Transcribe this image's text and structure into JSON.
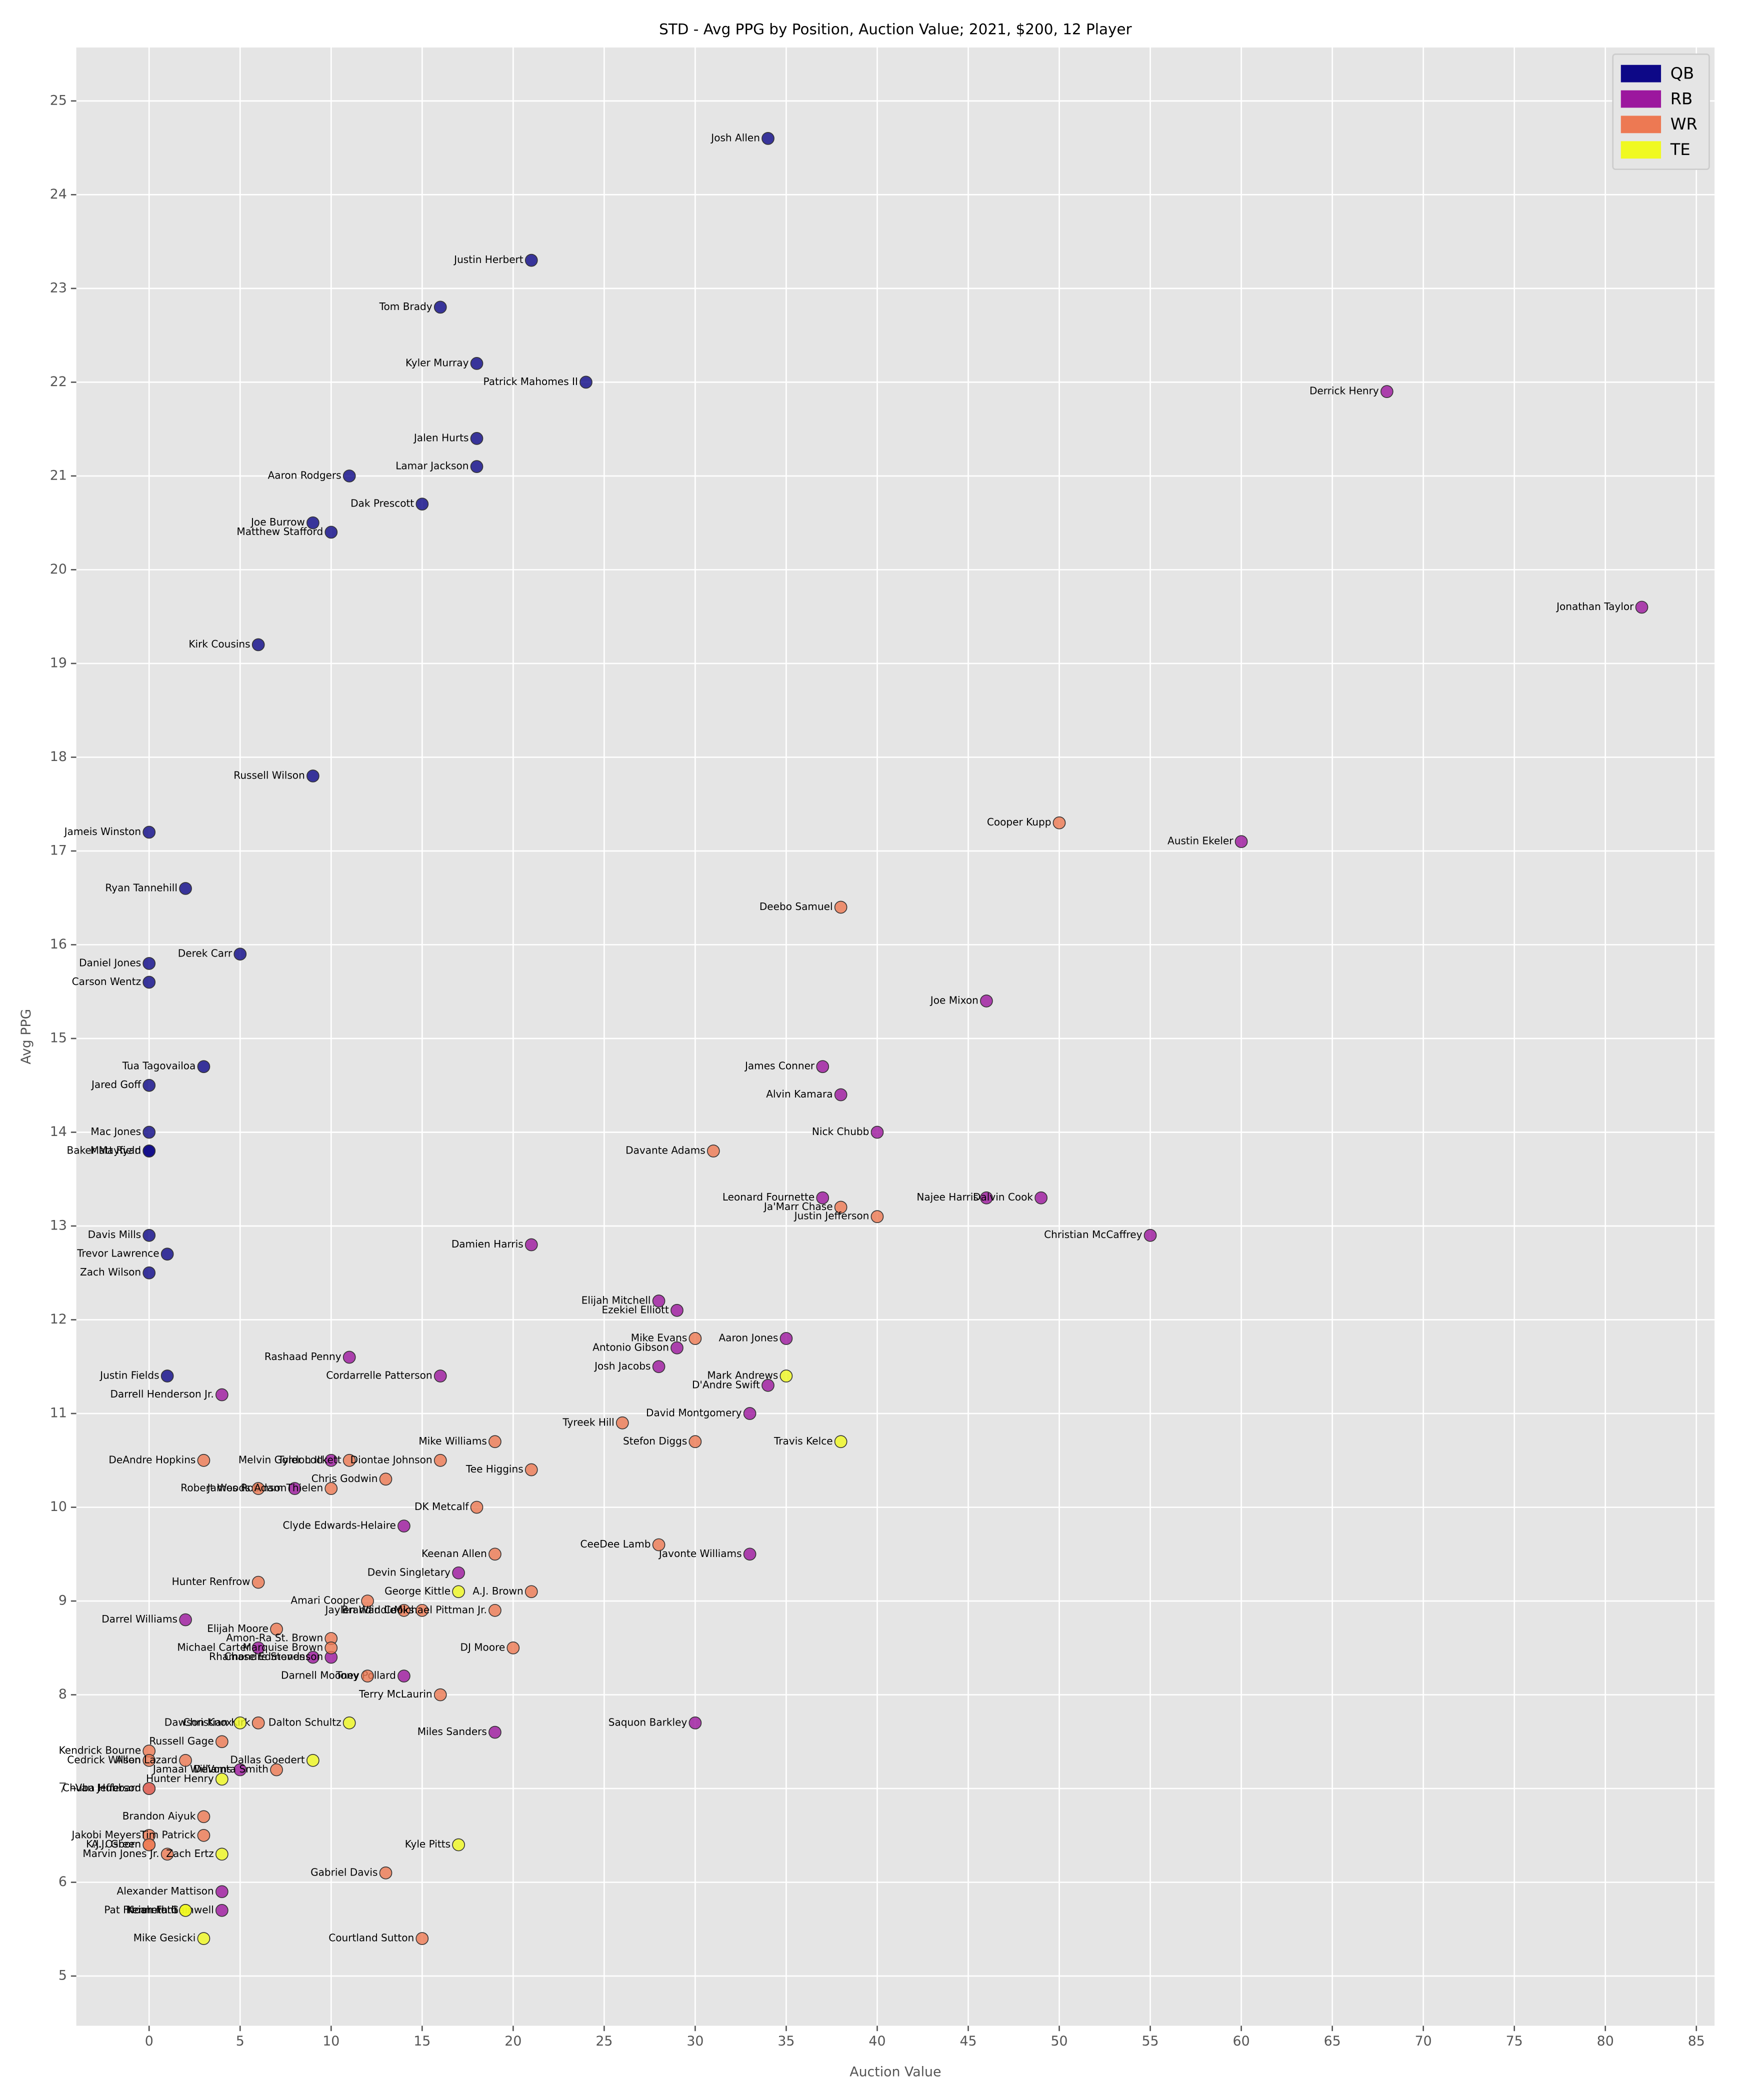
{
  "chart_data": {
    "type": "scatter",
    "title": "STD - Avg PPG by Position, Auction Value; 2021, $200, 12 Player",
    "x_label": "Auction Value",
    "y_label": "Avg PPG",
    "xlim": [
      -4,
      86
    ],
    "ylim": [
      4.47,
      25.57
    ],
    "xticks": [
      0,
      5,
      10,
      15,
      20,
      25,
      30,
      35,
      40,
      45,
      50,
      55,
      60,
      65,
      70,
      75,
      80,
      85
    ],
    "yticks": [
      5,
      6,
      7,
      8,
      9,
      10,
      11,
      12,
      13,
      14,
      15,
      16,
      17,
      18,
      19,
      20,
      21,
      22,
      23,
      24,
      25
    ],
    "grid": true,
    "legend": "upper right",
    "series": [
      {
        "name": "QB",
        "color": "#0d0887",
        "labels": [
          "Josh Allen",
          "Justin Herbert",
          "Tom Brady",
          "Kyler Murray",
          "Patrick Mahomes II",
          "Jalen Hurts",
          "Lamar Jackson",
          "Aaron Rodgers",
          "Dak Prescott",
          "Joe Burrow",
          "Matthew Stafford",
          "Kirk Cousins",
          "Russell Wilson",
          "Jameis Winston",
          "Ryan Tannehill",
          "Derek Carr",
          "Daniel Jones",
          "Carson Wentz",
          "Tua Tagovailoa",
          "Jared Goff",
          "Mac Jones",
          "Baker Mayfield",
          "Matt Ryan",
          "Davis Mills",
          "Trevor Lawrence",
          "Zach Wilson",
          "Justin Fields"
        ],
        "x": [
          34,
          21,
          16,
          18,
          24,
          18,
          18,
          11,
          15,
          9,
          10,
          6,
          9,
          0,
          2,
          5,
          0,
          0,
          3,
          0,
          0,
          0,
          0,
          0,
          1,
          0,
          1
        ],
        "values": [
          24.6,
          23.3,
          22.8,
          22.2,
          22.0,
          21.4,
          21.1,
          21.0,
          20.7,
          20.5,
          20.4,
          19.2,
          17.8,
          17.2,
          16.6,
          15.9,
          15.8,
          15.6,
          14.7,
          14.5,
          14.0,
          13.8,
          13.8,
          12.9,
          12.7,
          12.5,
          11.4
        ]
      },
      {
        "name": "RB",
        "color": "#9c179e",
        "labels": [
          "Derrick Henry",
          "Jonathan Taylor",
          "Austin Ekeler",
          "Joe Mixon",
          "James Conner",
          "Alvin Kamara",
          "Nick Chubb",
          "Leonard Fournette",
          "Najee Harris",
          "Dalvin Cook",
          "Christian McCaffrey",
          "Damien Harris",
          "Elijah Mitchell",
          "Ezekiel Elliott",
          "Aaron Jones",
          "Antonio Gibson",
          "Josh Jacobs",
          "D'Andre Swift",
          "Rashaad Penny",
          "Cordarrelle Patterson",
          "Darrell Henderson Jr.",
          "David Montgomery",
          "Melvin Gordon III",
          "James Robinson",
          "Clyde Edwards-Helaire",
          "Javonte Williams",
          "Devin Singletary",
          "Darrel Williams",
          "Michael Carter",
          "Chase Edmonds",
          "Rhamondre Stevenson",
          "Tony Pollard",
          "Saquon Barkley",
          "Miles Sanders",
          "Jamaal Williams",
          "Chuba Hubbard",
          "Alexander Mattison",
          "Kenneth Gainwell"
        ],
        "x": [
          68,
          82,
          60,
          46,
          37,
          38,
          40,
          37,
          46,
          49,
          55,
          21,
          28,
          29,
          35,
          29,
          28,
          34,
          11,
          16,
          4,
          33,
          10,
          8,
          14,
          33,
          17,
          2,
          6,
          9,
          10,
          14,
          30,
          19,
          5,
          0,
          4,
          4
        ],
        "values": [
          21.9,
          19.6,
          17.1,
          15.4,
          14.7,
          14.4,
          14.0,
          13.3,
          13.3,
          13.3,
          12.9,
          12.8,
          12.2,
          12.1,
          11.8,
          11.7,
          11.5,
          11.3,
          11.6,
          11.4,
          11.2,
          11.0,
          10.5,
          10.2,
          9.8,
          9.5,
          9.3,
          8.8,
          8.5,
          8.4,
          8.4,
          8.2,
          7.7,
          7.6,
          7.2,
          7.0,
          5.9,
          5.7
        ]
      },
      {
        "name": "WR",
        "color": "#ed7953",
        "labels": [
          "Cooper Kupp",
          "Deebo Samuel",
          "Davante Adams",
          "Ja'Marr Chase",
          "Justin Jefferson",
          "Mike Evans",
          "Tyreek Hill",
          "Stefon Diggs",
          "Mike Williams",
          "DeAndre Hopkins",
          "Tyler Lockett",
          "Diontae Johnson",
          "Tee Higgins",
          "Chris Godwin",
          "Robert Woods",
          "Adam Thielen",
          "DK Metcalf",
          "CeeDee Lamb",
          "Keenan Allen",
          "Hunter Renfrow",
          "A.J. Brown",
          "Amari Cooper",
          "Jaylen Waddle",
          "Brandin Cooks",
          "Michael Pittman Jr.",
          "Elijah Moore",
          "Amon-Ra St. Brown",
          "Marquise Brown",
          "DJ Moore",
          "Darnell Mooney",
          "Terry McLaurin",
          "Christian Kirk",
          "Russell Gage",
          "Kendrick Bourne",
          "Cedrick Wilson",
          "Allen Lazard",
          "DeVonta Smith",
          "Van Jefferson",
          "Brandon Aiyuk",
          "Jakobi Meyers",
          "Tim Patrick",
          "K.J. Osborn",
          "A.J. Green",
          "Marvin Jones Jr.",
          "Gabriel Davis",
          "Courtland Sutton"
        ],
        "x": [
          50,
          38,
          31,
          38,
          40,
          30,
          26,
          30,
          19,
          3,
          11,
          16,
          21,
          13,
          6,
          10,
          18,
          28,
          19,
          6,
          21,
          12,
          14,
          15,
          19,
          7,
          10,
          10,
          20,
          12,
          16,
          6,
          4,
          0,
          0,
          2,
          7,
          0,
          3,
          0,
          3,
          0,
          0,
          1,
          13,
          15
        ],
        "values": [
          17.3,
          16.4,
          13.8,
          13.2,
          13.1,
          11.8,
          10.9,
          10.7,
          10.7,
          10.5,
          10.5,
          10.5,
          10.4,
          10.3,
          10.2,
          10.2,
          10.0,
          9.6,
          9.5,
          9.2,
          9.1,
          9.0,
          8.9,
          8.9,
          8.9,
          8.7,
          8.6,
          8.5,
          8.5,
          8.2,
          8.0,
          7.7,
          7.5,
          7.4,
          7.3,
          7.3,
          7.2,
          7.0,
          6.7,
          6.5,
          6.5,
          6.4,
          6.4,
          6.3,
          6.1,
          5.4
        ]
      },
      {
        "name": "TE",
        "color": "#f0f921",
        "labels": [
          "Mark Andrews",
          "Travis Kelce",
          "George Kittle",
          "Dalton Schultz",
          "Dawson Knox",
          "Dallas Goedert",
          "Hunter Henry",
          "Kyle Pitts",
          "Zach Ertz",
          "Pat Freiermuth",
          "Noah Fant",
          "Mike Gesicki"
        ],
        "x": [
          35,
          38,
          17,
          11,
          5,
          9,
          4,
          17,
          4,
          2,
          2,
          3
        ],
        "values": [
          11.4,
          10.7,
          9.1,
          7.7,
          7.7,
          7.3,
          7.1,
          6.4,
          6.3,
          5.7,
          5.7,
          5.4
        ]
      }
    ]
  }
}
